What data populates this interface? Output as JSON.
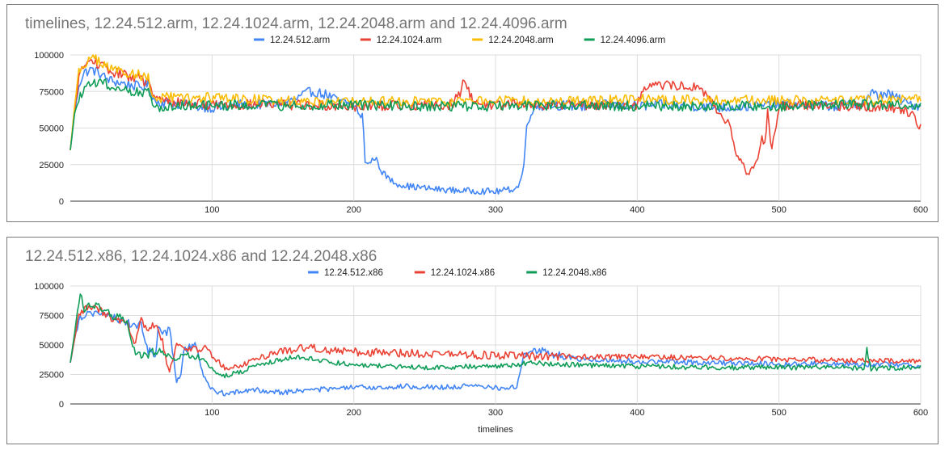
{
  "chart_data": [
    {
      "type": "line",
      "title": "timelines, 12.24.512.arm, 12.24.1024.arm, 12.24.2048.arm and 12.24.4096.arm",
      "xlabel": "",
      "ylabel": "",
      "xlim": [
        0,
        600
      ],
      "ylim": [
        0,
        100000
      ],
      "x_ticks": [
        "100",
        "200",
        "300",
        "400",
        "500",
        "600"
      ],
      "y_ticks": [
        "0",
        "25000",
        "50000",
        "75000",
        "100000"
      ],
      "grid": true,
      "legend_position": "top",
      "series": [
        {
          "name": "12.24.512.arm",
          "color": "#4285f4",
          "x": [
            0,
            3,
            6,
            10,
            15,
            20,
            25,
            30,
            40,
            50,
            55,
            60,
            70,
            80,
            90,
            100,
            110,
            120,
            130,
            150,
            160,
            165,
            170,
            175,
            180,
            190,
            200,
            203,
            205,
            206,
            207,
            208,
            210,
            215,
            220,
            225,
            230,
            240,
            250,
            260,
            270,
            280,
            290,
            300,
            310,
            315,
            318,
            320,
            322,
            325,
            330,
            340,
            360,
            380,
            400,
            420,
            440,
            460,
            480,
            500,
            520,
            540,
            560,
            565,
            570,
            575,
            580,
            590,
            600
          ],
          "y": [
            35000,
            60000,
            80000,
            88000,
            90000,
            88000,
            84000,
            82000,
            80000,
            78000,
            80000,
            68000,
            67000,
            66000,
            65000,
            64000,
            64000,
            66000,
            66000,
            67000,
            70000,
            73000,
            75000,
            74000,
            73000,
            68000,
            66000,
            62000,
            55000,
            58000,
            48000,
            28000,
            25000,
            30000,
            20000,
            15000,
            12000,
            10000,
            9000,
            8000,
            7500,
            7000,
            7000,
            6500,
            8000,
            9000,
            15000,
            25000,
            50000,
            62000,
            65000,
            66000,
            65000,
            66000,
            65000,
            66000,
            65000,
            64000,
            65000,
            66000,
            66000,
            65000,
            67000,
            74000,
            72000,
            74000,
            72000,
            67000,
            65000
          ]
        },
        {
          "name": "12.24.1024.arm",
          "color": "#ea4335",
          "x": [
            0,
            3,
            6,
            10,
            15,
            20,
            25,
            30,
            40,
            50,
            55,
            60,
            70,
            80,
            100,
            120,
            150,
            200,
            250,
            270,
            275,
            278,
            280,
            285,
            300,
            350,
            400,
            405,
            410,
            420,
            430,
            440,
            450,
            455,
            460,
            465,
            470,
            475,
            478,
            480,
            485,
            488,
            490,
            492,
            495,
            500,
            520,
            560,
            580,
            590,
            595,
            600
          ],
          "y": [
            35000,
            62000,
            85000,
            93000,
            96000,
            94000,
            90000,
            88000,
            86000,
            84000,
            80000,
            70000,
            68000,
            67000,
            66000,
            66000,
            66000,
            65000,
            66000,
            66000,
            75000,
            82000,
            78000,
            67000,
            66000,
            66000,
            66000,
            78000,
            80000,
            79000,
            79000,
            78000,
            72000,
            65000,
            55000,
            52000,
            30000,
            25000,
            18000,
            22000,
            28000,
            45000,
            40000,
            62000,
            35000,
            65000,
            66000,
            65000,
            64000,
            62000,
            58000,
            50000
          ]
        },
        {
          "name": "12.24.2048.arm",
          "color": "#fbbc04",
          "x": [
            0,
            3,
            6,
            10,
            15,
            20,
            25,
            30,
            40,
            50,
            55,
            58,
            60,
            70,
            80,
            100,
            120,
            150,
            200,
            250,
            300,
            350,
            400,
            450,
            500,
            550,
            600
          ],
          "y": [
            35000,
            65000,
            88000,
            94000,
            98000,
            96000,
            92000,
            90000,
            88000,
            86000,
            84000,
            72000,
            70000,
            71000,
            70000,
            71000,
            70000,
            69000,
            68000,
            68000,
            69000,
            68000,
            70000,
            69000,
            69000,
            69000,
            70000
          ]
        },
        {
          "name": "12.24.4096.arm",
          "color": "#0f9d58",
          "x": [
            0,
            3,
            6,
            10,
            15,
            20,
            25,
            30,
            40,
            50,
            55,
            58,
            60,
            70,
            80,
            100,
            120,
            150,
            200,
            250,
            300,
            350,
            400,
            450,
            500,
            550,
            600
          ],
          "y": [
            35000,
            60000,
            70000,
            76000,
            80000,
            82000,
            80000,
            78000,
            76000,
            75000,
            74000,
            65000,
            64000,
            65000,
            66000,
            65000,
            66000,
            65000,
            66000,
            65000,
            65000,
            66000,
            65000,
            65000,
            65000,
            66000,
            66000
          ]
        }
      ]
    },
    {
      "type": "line",
      "title": "12.24.512.x86, 12.24.1024.x86 and 12.24.2048.x86",
      "xlabel": "timelines",
      "ylabel": "",
      "xlim": [
        0,
        600
      ],
      "ylim": [
        0,
        100000
      ],
      "x_ticks": [
        "100",
        "200",
        "300",
        "400",
        "500",
        "600"
      ],
      "y_ticks": [
        "0",
        "25000",
        "50000",
        "75000",
        "100000"
      ],
      "grid": true,
      "legend_position": "top",
      "series": [
        {
          "name": "12.24.512.x86",
          "color": "#4285f4",
          "x": [
            0,
            3,
            6,
            10,
            15,
            20,
            25,
            30,
            40,
            45,
            50,
            55,
            60,
            62,
            65,
            70,
            75,
            78,
            80,
            85,
            88,
            90,
            92,
            95,
            98,
            100,
            105,
            110,
            120,
            130,
            140,
            150,
            170,
            190,
            200,
            220,
            240,
            260,
            280,
            300,
            310,
            315,
            318,
            320,
            325,
            330,
            340,
            360,
            400,
            450,
            500,
            550,
            600
          ],
          "y": [
            35000,
            55000,
            72000,
            76000,
            78000,
            77000,
            75000,
            73000,
            70000,
            65000,
            68000,
            45000,
            42000,
            65000,
            60000,
            62000,
            20000,
            25000,
            45000,
            48000,
            52000,
            45000,
            30000,
            22000,
            15000,
            12000,
            10000,
            9000,
            10000,
            12000,
            11000,
            10000,
            12000,
            13000,
            14000,
            14000,
            15000,
            14000,
            15000,
            14000,
            13000,
            15000,
            30000,
            42000,
            44000,
            46000,
            42000,
            38000,
            36000,
            35000,
            34000,
            34000,
            33000
          ]
        },
        {
          "name": "12.24.1024.x86",
          "color": "#ea4335",
          "x": [
            0,
            3,
            6,
            10,
            15,
            20,
            25,
            30,
            40,
            45,
            50,
            55,
            60,
            65,
            68,
            70,
            75,
            80,
            90,
            95,
            100,
            110,
            120,
            130,
            140,
            150,
            160,
            170,
            180,
            200,
            250,
            300,
            350,
            400,
            450,
            500,
            550,
            600
          ],
          "y": [
            35000,
            55000,
            75000,
            80000,
            82000,
            80000,
            76000,
            72000,
            68000,
            48000,
            70000,
            65000,
            68000,
            55000,
            35000,
            28000,
            50000,
            48000,
            46000,
            48000,
            40000,
            30000,
            32000,
            38000,
            42000,
            45000,
            47000,
            48000,
            46000,
            44000,
            43000,
            41000,
            40000,
            40000,
            39000,
            38000,
            37000,
            36000
          ]
        },
        {
          "name": "12.24.2048.x86",
          "color": "#0f9d58",
          "x": [
            0,
            3,
            6,
            8,
            10,
            15,
            20,
            25,
            30,
            40,
            45,
            50,
            55,
            60,
            65,
            70,
            75,
            80,
            90,
            95,
            100,
            105,
            110,
            120,
            130,
            140,
            150,
            160,
            180,
            200,
            250,
            300,
            330,
            340,
            360,
            400,
            450,
            500,
            550,
            560,
            562,
            565,
            600
          ],
          "y": [
            35000,
            60000,
            88000,
            92000,
            78000,
            85000,
            82000,
            78000,
            74000,
            72000,
            45000,
            40000,
            42000,
            45000,
            43000,
            40000,
            38000,
            42000,
            40000,
            35000,
            30000,
            25000,
            24000,
            27000,
            32000,
            35000,
            38000,
            40000,
            36000,
            33000,
            31000,
            32000,
            35000,
            34000,
            33000,
            32000,
            31000,
            31000,
            31000,
            30000,
            46000,
            30000,
            31000
          ]
        }
      ]
    }
  ]
}
